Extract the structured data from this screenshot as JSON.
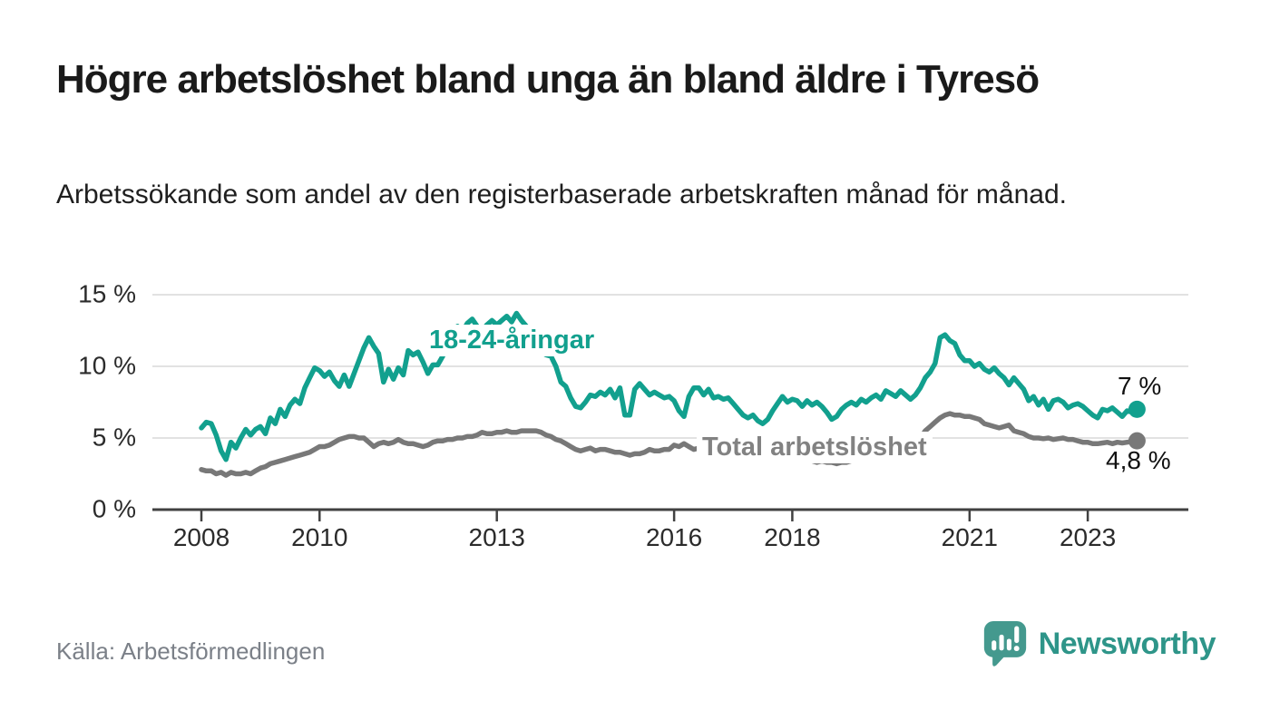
{
  "header": {
    "title": "Högre arbetslöshet bland unga än bland äldre i Tyresö",
    "subtitle": "Arbetssökande som andel av den registerbaserade arbetskraften månad för månad."
  },
  "chart_data": {
    "type": "line",
    "title": "Högre arbetslöshet bland unga än bland äldre i Tyresö",
    "subtitle": "Arbetssökande som andel av den registerbaserade arbetskraften månad för månad.",
    "xlabel": "",
    "ylabel": "%",
    "ylim": [
      0,
      15
    ],
    "grid": "horizontal",
    "legend_position": "inline-labels",
    "frequency": "monthly",
    "x_start": "2008-01",
    "x_end": "2023-11",
    "x_ticks": [
      {
        "label": "2008",
        "year": 2008
      },
      {
        "label": "2010",
        "year": 2010
      },
      {
        "label": "2013",
        "year": 2013
      },
      {
        "label": "2016",
        "year": 2016
      },
      {
        "label": "2018",
        "year": 2018
      },
      {
        "label": "2021",
        "year": 2021
      },
      {
        "label": "2023",
        "year": 2023
      }
    ],
    "y_ticks": [
      {
        "label": "0 %",
        "value": 0
      },
      {
        "label": "5 %",
        "value": 5
      },
      {
        "label": "10 %",
        "value": 10
      },
      {
        "label": "15 %",
        "value": 15
      }
    ],
    "series": [
      {
        "name": "18-24-åringar",
        "color": "#12a08e",
        "end_value": 7.0,
        "end_label": "7 %",
        "values": [
          5.7,
          6.1,
          6.0,
          5.2,
          4.1,
          3.5,
          4.7,
          4.3,
          5.0,
          5.6,
          5.2,
          5.6,
          5.8,
          5.3,
          6.4,
          6.0,
          7.0,
          6.5,
          7.3,
          7.7,
          7.4,
          8.5,
          9.2,
          9.9,
          9.7,
          9.3,
          9.6,
          9.0,
          8.6,
          9.4,
          8.6,
          9.5,
          10.4,
          11.3,
          12.0,
          11.4,
          10.9,
          8.9,
          9.8,
          9.1,
          9.9,
          9.4,
          11.1,
          10.8,
          11.0,
          10.3,
          9.5,
          10.1,
          10.1,
          10.7,
          11.4,
          12.2,
          12.8,
          12.4,
          13.0,
          13.3,
          12.8,
          12.5,
          12.9,
          13.2,
          12.9,
          13.2,
          13.5,
          13.1,
          13.7,
          13.2,
          12.8,
          12.2,
          11.6,
          11.0,
          10.8,
          10.7,
          10.0,
          8.9,
          8.6,
          7.8,
          7.2,
          7.1,
          7.5,
          8.0,
          7.9,
          8.2,
          8.0,
          8.4,
          7.8,
          8.5,
          6.6,
          6.6,
          8.4,
          8.8,
          8.4,
          8.0,
          8.2,
          8.0,
          7.8,
          7.9,
          7.6,
          6.9,
          6.5,
          7.9,
          8.5,
          8.5,
          8.0,
          8.4,
          7.8,
          7.9,
          7.7,
          7.8,
          7.4,
          7.0,
          6.6,
          6.4,
          6.6,
          6.2,
          6.0,
          6.3,
          6.9,
          7.4,
          7.9,
          7.5,
          7.7,
          7.6,
          7.2,
          7.6,
          7.3,
          7.5,
          7.2,
          6.8,
          6.3,
          6.5,
          7.0,
          7.3,
          7.5,
          7.3,
          7.7,
          7.5,
          7.8,
          8.0,
          7.7,
          8.3,
          8.1,
          7.9,
          8.3,
          8.0,
          7.7,
          8.0,
          8.5,
          9.2,
          9.6,
          10.2,
          12.0,
          12.2,
          11.8,
          11.6,
          10.8,
          10.4,
          10.4,
          10.0,
          10.2,
          9.8,
          9.6,
          9.9,
          9.5,
          9.2,
          8.7,
          9.2,
          8.8,
          8.4,
          7.6,
          7.9,
          7.3,
          7.7,
          7.0,
          7.6,
          7.7,
          7.5,
          7.1,
          7.3,
          7.4,
          7.2,
          6.9,
          6.6,
          6.4,
          7.0,
          6.9,
          7.1,
          6.8,
          6.5,
          6.9,
          6.8,
          7.0
        ]
      },
      {
        "name": "Total arbetslöshet",
        "color": "#787878",
        "end_value": 4.8,
        "end_label": "4,8 %",
        "values": [
          2.8,
          2.7,
          2.7,
          2.5,
          2.6,
          2.4,
          2.6,
          2.5,
          2.5,
          2.6,
          2.5,
          2.7,
          2.9,
          3.0,
          3.2,
          3.3,
          3.4,
          3.5,
          3.6,
          3.7,
          3.8,
          3.9,
          4.0,
          4.2,
          4.4,
          4.4,
          4.5,
          4.7,
          4.9,
          5.0,
          5.1,
          5.1,
          5.0,
          5.0,
          4.7,
          4.4,
          4.6,
          4.7,
          4.6,
          4.7,
          4.9,
          4.7,
          4.6,
          4.6,
          4.5,
          4.4,
          4.5,
          4.7,
          4.8,
          4.8,
          4.9,
          4.9,
          5.0,
          5.0,
          5.1,
          5.1,
          5.2,
          5.4,
          5.3,
          5.3,
          5.4,
          5.4,
          5.5,
          5.4,
          5.4,
          5.5,
          5.5,
          5.5,
          5.5,
          5.4,
          5.2,
          5.1,
          4.9,
          4.8,
          4.6,
          4.4,
          4.2,
          4.1,
          4.2,
          4.3,
          4.1,
          4.2,
          4.2,
          4.1,
          4.0,
          4.0,
          3.9,
          3.8,
          3.9,
          3.9,
          4.0,
          4.2,
          4.1,
          4.1,
          4.2,
          4.2,
          4.5,
          4.4,
          4.6,
          4.4,
          4.2,
          4.3,
          4.2,
          4.1,
          4.1,
          4.0,
          4.0,
          3.9,
          3.9,
          3.8,
          3.8,
          3.7,
          3.7,
          3.8,
          3.8,
          3.7,
          3.6,
          3.6,
          3.6,
          3.6,
          3.6,
          3.5,
          3.5,
          3.4,
          3.4,
          3.3,
          3.4,
          3.3,
          3.3,
          3.2,
          3.3,
          3.3,
          3.4,
          3.4,
          3.5,
          3.5,
          3.6,
          3.7,
          3.8,
          3.8,
          3.9,
          4.0,
          4.1,
          4.2,
          4.4,
          4.6,
          5.0,
          5.5,
          5.8,
          6.1,
          6.4,
          6.6,
          6.7,
          6.6,
          6.6,
          6.5,
          6.5,
          6.4,
          6.3,
          6.0,
          5.9,
          5.8,
          5.7,
          5.8,
          5.9,
          5.5,
          5.4,
          5.3,
          5.1,
          5.0,
          5.0,
          4.95,
          5.0,
          4.9,
          4.95,
          5.0,
          4.9,
          4.9,
          4.8,
          4.7,
          4.7,
          4.6,
          4.6,
          4.65,
          4.7,
          4.6,
          4.7,
          4.65,
          4.7,
          4.75,
          4.8
        ]
      }
    ]
  },
  "footer": {
    "source": "Källa: Arbetsförmedlingen",
    "brand": "Newsworthy"
  }
}
